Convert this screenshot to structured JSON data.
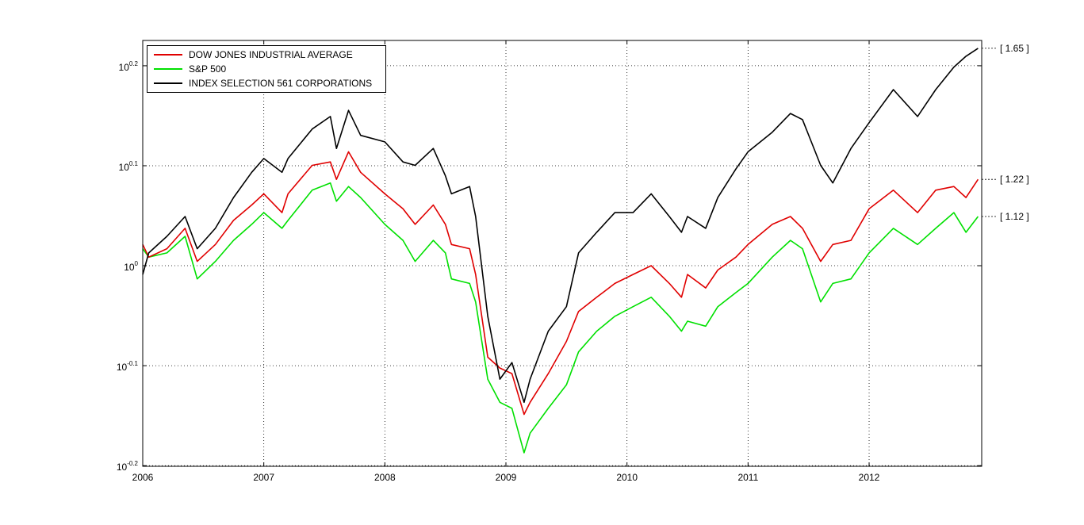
{
  "chart_data": {
    "type": "line",
    "yscale": "log10",
    "ylim": [
      0.63,
      1.68
    ],
    "xlim": [
      "2006",
      "2012.93"
    ],
    "x_ticks": [
      "2006",
      "2007",
      "2008",
      "2009",
      "2010",
      "2011",
      "2012"
    ],
    "y_ticks": [
      {
        "base": "10",
        "exp": "0.2"
      },
      {
        "base": "10",
        "exp": "0.1"
      },
      {
        "base": "10",
        "exp": "0"
      },
      {
        "base": "10",
        "exp": "-0.1"
      },
      {
        "base": "10",
        "exp": "-0.2"
      }
    ],
    "grid": true,
    "legend_position": "top-left",
    "series": [
      {
        "name": "DOW JONES INDUSTRIAL AVERAGE",
        "color": "#e00000",
        "end_label": "[ 1.22 ]",
        "x": [
          2006.0,
          2006.05,
          2006.2,
          2006.35,
          2006.45,
          2006.6,
          2006.75,
          2006.9,
          2007.0,
          2007.15,
          2007.2,
          2007.4,
          2007.55,
          2007.6,
          2007.7,
          2007.8,
          2008.0,
          2008.15,
          2008.25,
          2008.4,
          2008.5,
          2008.55,
          2008.7,
          2008.75,
          2008.85,
          2008.95,
          2009.05,
          2009.15,
          2009.2,
          2009.35,
          2009.5,
          2009.6,
          2009.75,
          2009.9,
          2010.05,
          2010.2,
          2010.35,
          2010.45,
          2010.5,
          2010.65,
          2010.75,
          2010.9,
          2011.0,
          2011.2,
          2011.35,
          2011.45,
          2011.6,
          2011.7,
          2011.85,
          2012.0,
          2012.2,
          2012.4,
          2012.55,
          2012.7,
          2012.8,
          2012.9
        ],
        "values": [
          1.05,
          1.02,
          1.04,
          1.09,
          1.01,
          1.05,
          1.11,
          1.15,
          1.18,
          1.13,
          1.18,
          1.26,
          1.27,
          1.22,
          1.3,
          1.24,
          1.18,
          1.14,
          1.1,
          1.15,
          1.1,
          1.05,
          1.04,
          0.98,
          0.81,
          0.79,
          0.78,
          0.71,
          0.73,
          0.78,
          0.84,
          0.9,
          0.93,
          0.96,
          0.98,
          1.0,
          0.96,
          0.93,
          0.98,
          0.95,
          0.99,
          1.02,
          1.05,
          1.1,
          1.12,
          1.09,
          1.01,
          1.05,
          1.06,
          1.14,
          1.19,
          1.13,
          1.19,
          1.2,
          1.17,
          1.22
        ]
      },
      {
        "name": "S&P 500",
        "color": "#00e000",
        "end_label": "[ 1.12 ]",
        "x": [
          2006.0,
          2006.05,
          2006.2,
          2006.35,
          2006.45,
          2006.6,
          2006.75,
          2006.9,
          2007.0,
          2007.15,
          2007.2,
          2007.4,
          2007.55,
          2007.6,
          2007.7,
          2007.8,
          2008.0,
          2008.15,
          2008.25,
          2008.4,
          2008.5,
          2008.55,
          2008.7,
          2008.75,
          2008.85,
          2008.95,
          2009.05,
          2009.15,
          2009.2,
          2009.35,
          2009.5,
          2009.6,
          2009.75,
          2009.9,
          2010.05,
          2010.2,
          2010.35,
          2010.45,
          2010.5,
          2010.65,
          2010.75,
          2010.9,
          2011.0,
          2011.2,
          2011.35,
          2011.45,
          2011.6,
          2011.7,
          2011.85,
          2012.0,
          2012.2,
          2012.4,
          2012.55,
          2012.7,
          2012.8,
          2012.9
        ],
        "values": [
          1.04,
          1.02,
          1.03,
          1.07,
          0.97,
          1.01,
          1.06,
          1.1,
          1.13,
          1.09,
          1.11,
          1.19,
          1.21,
          1.16,
          1.2,
          1.17,
          1.1,
          1.06,
          1.01,
          1.06,
          1.03,
          0.97,
          0.96,
          0.92,
          0.77,
          0.73,
          0.72,
          0.65,
          0.68,
          0.72,
          0.76,
          0.82,
          0.86,
          0.89,
          0.91,
          0.93,
          0.89,
          0.86,
          0.88,
          0.87,
          0.91,
          0.94,
          0.96,
          1.02,
          1.06,
          1.04,
          0.92,
          0.96,
          0.97,
          1.03,
          1.09,
          1.05,
          1.09,
          1.13,
          1.08,
          1.12
        ]
      },
      {
        "name": "INDEX SELECTION 561 CORPORATIONS",
        "color": "#000000",
        "end_label": "[ 1.65 ]",
        "x": [
          2006.0,
          2006.05,
          2006.2,
          2006.35,
          2006.45,
          2006.6,
          2006.75,
          2006.9,
          2007.0,
          2007.15,
          2007.2,
          2007.4,
          2007.55,
          2007.6,
          2007.7,
          2007.8,
          2008.0,
          2008.15,
          2008.25,
          2008.4,
          2008.5,
          2008.55,
          2008.7,
          2008.75,
          2008.85,
          2008.95,
          2009.05,
          2009.15,
          2009.2,
          2009.35,
          2009.5,
          2009.6,
          2009.75,
          2009.9,
          2010.05,
          2010.2,
          2010.35,
          2010.45,
          2010.5,
          2010.65,
          2010.75,
          2010.9,
          2011.0,
          2011.2,
          2011.35,
          2011.45,
          2011.6,
          2011.7,
          2011.85,
          2012.0,
          2012.2,
          2012.4,
          2012.55,
          2012.7,
          2012.8,
          2012.9
        ],
        "values": [
          0.98,
          1.03,
          1.07,
          1.12,
          1.04,
          1.09,
          1.17,
          1.24,
          1.28,
          1.24,
          1.28,
          1.37,
          1.41,
          1.31,
          1.43,
          1.35,
          1.33,
          1.27,
          1.26,
          1.31,
          1.23,
          1.18,
          1.2,
          1.12,
          0.89,
          0.77,
          0.8,
          0.73,
          0.77,
          0.86,
          0.91,
          1.03,
          1.08,
          1.13,
          1.13,
          1.18,
          1.12,
          1.08,
          1.12,
          1.09,
          1.17,
          1.25,
          1.3,
          1.36,
          1.42,
          1.4,
          1.26,
          1.21,
          1.31,
          1.39,
          1.5,
          1.41,
          1.5,
          1.58,
          1.62,
          1.65
        ]
      }
    ]
  }
}
